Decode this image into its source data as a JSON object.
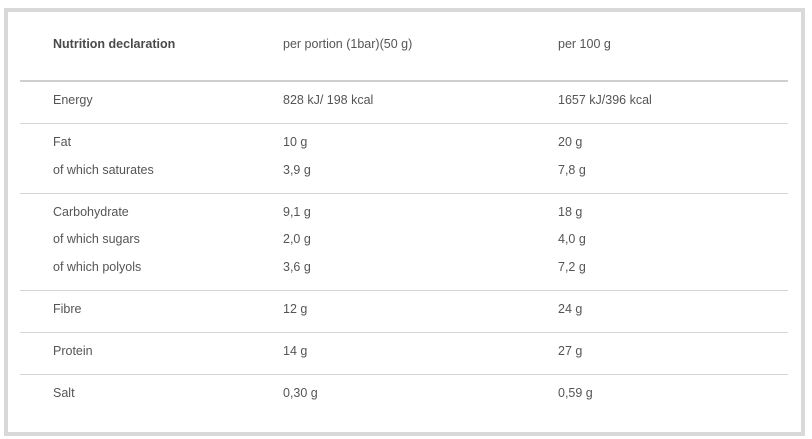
{
  "header": {
    "label": "Nutrition declaration",
    "per_portion": "per portion (1bar)(50 g)",
    "per_100g": "per 100 g"
  },
  "rows": [
    {
      "label": "Energy",
      "per_portion": "828 kJ/ 198 kcal",
      "per_100g": "1657 kJ/396 kcal"
    },
    {
      "label": "Fat",
      "per_portion": "10 g",
      "per_100g": "20 g"
    },
    {
      "label": "of which saturates",
      "per_portion": "3,9 g",
      "per_100g": "7,8 g"
    },
    {
      "label": "Carbohydrate",
      "per_portion": "9,1 g",
      "per_100g": "18 g"
    },
    {
      "label": "of which sugars",
      "per_portion": "2,0 g",
      "per_100g": "4,0 g"
    },
    {
      "label": "of which polyols",
      "per_portion": "3,6 g",
      "per_100g": "7,2 g"
    },
    {
      "label": "Fibre",
      "per_portion": "12 g",
      "per_100g": "24 g"
    },
    {
      "label": "Protein",
      "per_portion": "14 g",
      "per_100g": "27 g"
    },
    {
      "label": "Salt",
      "per_portion": "0,30 g",
      "per_100g": "0,59 g"
    }
  ]
}
